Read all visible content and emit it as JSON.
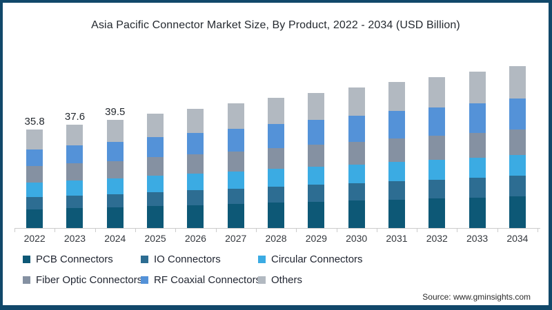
{
  "frame": {
    "border_color": "#11486a",
    "background": "#ffffff"
  },
  "title": "Asia Pacific Connector Market Size, By Product, 2022 - 2034 (USD Billion)",
  "source": "Source: www.gminsights.com",
  "chart_data": {
    "type": "bar",
    "stacked": true,
    "unit": "USD Billion",
    "grid": false,
    "legend_position": "bottom",
    "categories": [
      2022,
      2023,
      2024,
      2025,
      2026,
      2027,
      2028,
      2029,
      2030,
      2031,
      2032,
      2033,
      2034
    ],
    "series": [
      {
        "name": "PCB Connectors",
        "color": "#0d5876",
        "values": [
          6.9,
          7.3,
          7.6,
          8.0,
          8.4,
          8.8,
          9.2,
          9.6,
          10.0,
          10.4,
          10.7,
          11.1,
          11.5
        ]
      },
      {
        "name": "IO Connectors",
        "color": "#2d6d92",
        "values": [
          4.3,
          4.6,
          4.8,
          5.1,
          5.4,
          5.6,
          5.9,
          6.2,
          6.4,
          6.7,
          7.0,
          7.2,
          7.5
        ]
      },
      {
        "name": "Circular Connectors",
        "color": "#3babe3",
        "values": [
          5.4,
          5.5,
          5.7,
          5.9,
          6.1,
          6.3,
          6.5,
          6.6,
          6.8,
          7.0,
          7.2,
          7.3,
          7.5
        ]
      },
      {
        "name": "Fiber Optic Connectors",
        "color": "#8591a2",
        "values": [
          5.9,
          6.2,
          6.4,
          6.8,
          7.0,
          7.3,
          7.6,
          7.9,
          8.2,
          8.5,
          8.7,
          9.0,
          9.3
        ]
      },
      {
        "name": "RF Coaxial Connectors",
        "color": "#5492d8",
        "values": [
          6.1,
          6.5,
          7.0,
          7.4,
          7.8,
          8.3,
          8.7,
          9.1,
          9.6,
          10.0,
          10.4,
          10.9,
          11.3
        ]
      },
      {
        "name": "Others",
        "color": "#b2b9c1",
        "values": [
          7.2,
          7.5,
          8.0,
          8.4,
          8.8,
          9.1,
          9.5,
          9.9,
          10.3,
          10.7,
          11.0,
          11.4,
          11.8
        ]
      }
    ],
    "bar_total_labels": {
      "2022": "35.8",
      "2023": "37.6",
      "2024": "39.5"
    },
    "totals": [
      35.8,
      37.6,
      39.5,
      41.6,
      43.5,
      45.4,
      47.4,
      49.3,
      51.3,
      53.3,
      55.0,
      56.9,
      58.9
    ],
    "xlabel": "",
    "ylabel": ""
  }
}
